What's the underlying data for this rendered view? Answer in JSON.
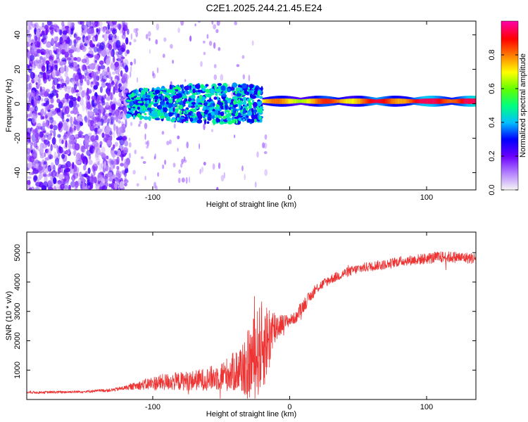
{
  "title": "C2E1.2025.244.21.45.E24",
  "chart_data": [
    {
      "type": "heatmap",
      "title": "C2E1.2025.244.21.45.E24",
      "xlabel": "Height of straight line (km)",
      "ylabel": "Frequency (Hz)",
      "xlim": [
        -192,
        136
      ],
      "ylim": [
        -50,
        48
      ],
      "xticks": [
        -100,
        0,
        100
      ],
      "xtick_labels": [
        "-100",
        "0",
        "100"
      ],
      "yticks": [
        -40,
        -20,
        0,
        20,
        40
      ],
      "ytick_labels": [
        "-40",
        "-20",
        "0",
        "20",
        "40"
      ],
      "colorbar": {
        "label": "Normalized spectral amplitude",
        "range": [
          0,
          1
        ],
        "ticks": [
          0.0,
          0.2,
          0.4,
          0.6,
          0.8
        ],
        "tick_labels": [
          "0.0",
          "0.2",
          "0.4",
          "0.6",
          "0.8"
        ],
        "colors": [
          "#f4f4f4",
          "#b37fff",
          "#6a00ff",
          "#0000ff",
          "#00c0ff",
          "#00ff80",
          "#60ff00",
          "#ffff00",
          "#ff8000",
          "#ff0000",
          "#ff00a0"
        ]
      },
      "regions": [
        {
          "name": "noise",
          "x_range": [
            -192,
            -118
          ],
          "y_range": [
            -50,
            48
          ],
          "amplitude": 0.15
        },
        {
          "name": "sparse",
          "x_range": [
            -118,
            -10
          ],
          "y_range": [
            -50,
            48
          ],
          "amplitude": 0.05
        },
        {
          "name": "broad-band",
          "x_range": [
            -118,
            -20
          ],
          "y_center": 0,
          "half_width": 8,
          "amplitude": 0.35
        },
        {
          "name": "narrow-band",
          "x_range": [
            -20,
            136
          ],
          "y_center": 1.5,
          "half_width": 2,
          "amplitude": 0.85
        }
      ]
    },
    {
      "type": "line",
      "xlabel": "Height of straight line (km)",
      "ylabel": "SNR (10 * v/v)",
      "xlim": [
        -192,
        136
      ],
      "ylim": [
        0,
        5700
      ],
      "xticks": [
        -100,
        0,
        100
      ],
      "xtick_labels": [
        "-100",
        "0",
        "100"
      ],
      "yticks": [
        1000,
        2000,
        3000,
        4000,
        5000
      ],
      "ytick_labels": [
        "1000",
        "2000",
        "3000",
        "4000",
        "5000"
      ],
      "color": "#ee3333",
      "series": [
        {
          "name": "SNR",
          "x": [
            -192,
            -170,
            -150,
            -130,
            -120,
            -110,
            -100,
            -90,
            -80,
            -70,
            -60,
            -50,
            -40,
            -30,
            -25,
            -20,
            -15,
            -10,
            -5,
            0,
            5,
            10,
            15,
            20,
            30,
            40,
            50,
            60,
            70,
            80,
            90,
            100,
            110,
            120,
            136
          ],
          "y": [
            240,
            250,
            270,
            320,
            400,
            480,
            550,
            600,
            620,
            650,
            700,
            800,
            950,
            1200,
            1500,
            1800,
            2100,
            2500,
            2600,
            2700,
            2800,
            3200,
            3500,
            3800,
            4100,
            4300,
            4450,
            4550,
            4600,
            4700,
            4750,
            4800,
            4850,
            4850,
            4800
          ],
          "noise": [
            40,
            40,
            40,
            60,
            80,
            150,
            250,
            300,
            320,
            350,
            400,
            500,
            700,
            1200,
            1500,
            1600,
            1200,
            600,
            300,
            200,
            200,
            250,
            200,
            180,
            170,
            170,
            170,
            170,
            170,
            170,
            180,
            200,
            200,
            200,
            200
          ]
        }
      ]
    }
  ]
}
